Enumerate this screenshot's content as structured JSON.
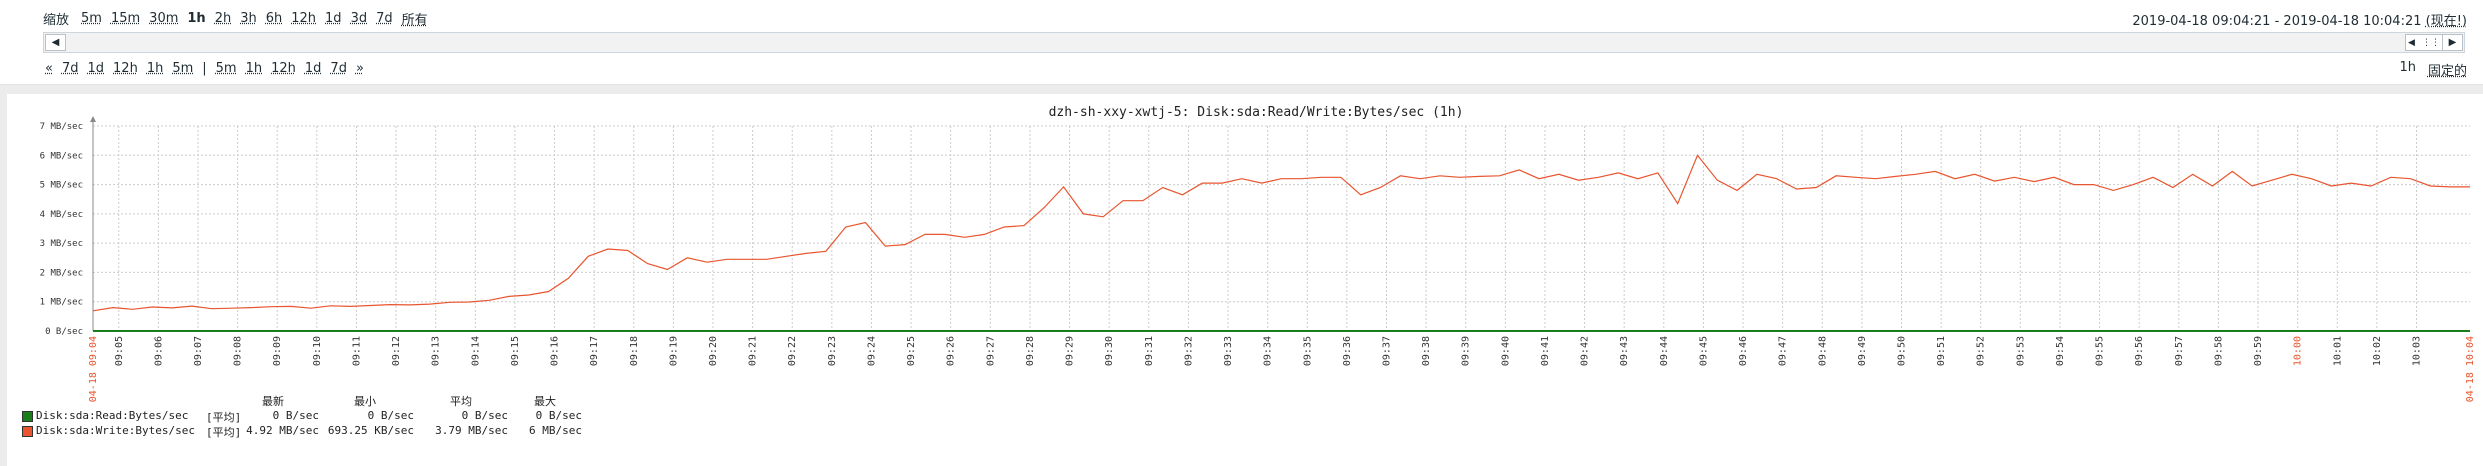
{
  "filter": {
    "zoom_label": "缩放",
    "zoom_options": [
      "5m",
      "15m",
      "30m",
      "1h",
      "2h",
      "3h",
      "6h",
      "12h",
      "1d",
      "3d",
      "7d",
      "所有"
    ],
    "zoom_active": "1h",
    "period_from": "2019-04-18 09:04:21",
    "period_sep": " - ",
    "period_to": "2019-04-18 10:04:21",
    "period_now": "(现在!)",
    "nav_back_arrows": "«",
    "nav_back": [
      "7d",
      "1d",
      "12h",
      "1h",
      "5m"
    ],
    "nav_separator": "|",
    "nav_forward": [
      "5m",
      "1h",
      "12h",
      "1d",
      "7d"
    ],
    "nav_forward_arrows": "»",
    "fixed_size": "1h",
    "fixed_label": "固定的",
    "scroll_left_icon": "◀",
    "scroll_right_icon": "▶"
  },
  "chart_data": {
    "type": "line",
    "title": "dzh-sh-xxy-xwtj-5: Disk:sda:Read/Write:Bytes/sec (1h)",
    "y_unit": "MB/sec",
    "y_tick_labels": [
      "0 B/sec",
      "1 MB/sec",
      "2 MB/sec",
      "3 MB/sec",
      "4 MB/sec",
      "5 MB/sec",
      "6 MB/sec",
      "7 MB/sec"
    ],
    "ylim": [
      0,
      7
    ],
    "grid": true,
    "x_start_label": "04-18 09:04",
    "x_end_label": "04-18 10:04",
    "x_tick_labels": [
      "09:05",
      "09:06",
      "09:07",
      "09:08",
      "09:09",
      "09:10",
      "09:11",
      "09:12",
      "09:13",
      "09:14",
      "09:15",
      "09:16",
      "09:17",
      "09:18",
      "09:19",
      "09:20",
      "09:21",
      "09:22",
      "09:23",
      "09:24",
      "09:25",
      "09:26",
      "09:27",
      "09:28",
      "09:29",
      "09:30",
      "09:31",
      "09:32",
      "09:33",
      "09:34",
      "09:35",
      "09:36",
      "09:37",
      "09:38",
      "09:39",
      "09:40",
      "09:41",
      "09:42",
      "09:43",
      "09:44",
      "09:45",
      "09:46",
      "09:47",
      "09:48",
      "09:49",
      "09:50",
      "09:51",
      "09:52",
      "09:53",
      "09:54",
      "09:55",
      "09:56",
      "09:57",
      "09:58",
      "09:59",
      "10:00",
      "10:01",
      "10:02",
      "10:03"
    ],
    "highlight_tick": "10:00",
    "series": [
      {
        "name": "Disk:sda:Read:Bytes/sec",
        "color": "#1a7f1a",
        "values": [
          0,
          0,
          0,
          0,
          0,
          0,
          0,
          0,
          0,
          0,
          0,
          0,
          0,
          0,
          0,
          0,
          0,
          0,
          0,
          0,
          0,
          0,
          0,
          0,
          0,
          0,
          0,
          0,
          0,
          0,
          0,
          0,
          0,
          0,
          0,
          0,
          0,
          0,
          0,
          0,
          0,
          0,
          0,
          0,
          0,
          0,
          0,
          0,
          0,
          0,
          0,
          0,
          0,
          0,
          0,
          0,
          0,
          0,
          0,
          0,
          0,
          0,
          0,
          0,
          0,
          0,
          0,
          0,
          0,
          0,
          0,
          0,
          0,
          0,
          0,
          0,
          0,
          0,
          0,
          0,
          0,
          0,
          0,
          0,
          0,
          0,
          0,
          0,
          0,
          0,
          0,
          0,
          0,
          0,
          0,
          0,
          0,
          0,
          0,
          0,
          0,
          0,
          0,
          0,
          0,
          0,
          0,
          0,
          0,
          0,
          0,
          0,
          0,
          0,
          0,
          0,
          0,
          0,
          0,
          0,
          0
        ]
      },
      {
        "name": "Disk:sda:Write:Bytes/sec",
        "color": "#e8552f",
        "values": [
          0.69,
          0.8,
          0.74,
          0.82,
          0.79,
          0.85,
          0.76,
          0.78,
          0.8,
          0.83,
          0.84,
          0.78,
          0.86,
          0.84,
          0.87,
          0.9,
          0.89,
          0.92,
          0.98,
          0.99,
          1.05,
          1.18,
          1.23,
          1.35,
          1.8,
          2.55,
          2.8,
          2.75,
          2.3,
          2.1,
          2.5,
          2.35,
          2.45,
          2.45,
          2.45,
          2.55,
          2.65,
          2.72,
          3.55,
          3.7,
          2.9,
          2.95,
          3.3,
          3.3,
          3.2,
          3.3,
          3.55,
          3.6,
          4.2,
          4.92,
          4.0,
          3.9,
          4.45,
          4.45,
          4.9,
          4.65,
          5.05,
          5.05,
          5.2,
          5.05,
          5.2,
          5.2,
          5.25,
          5.25,
          4.65,
          4.9,
          5.3,
          5.2,
          5.3,
          5.25,
          5.28,
          5.3,
          5.5,
          5.2,
          5.35,
          5.15,
          5.25,
          5.4,
          5.2,
          5.4,
          4.35,
          6.0,
          5.15,
          4.8,
          5.35,
          5.2,
          4.85,
          4.9,
          5.3,
          5.25,
          5.2,
          5.28,
          5.35,
          5.45,
          5.2,
          5.35,
          5.12,
          5.25,
          5.1,
          5.25,
          5.0,
          5.0,
          4.8,
          5.0,
          5.25,
          4.9,
          5.35,
          4.95,
          5.45,
          4.95,
          5.15,
          5.35,
          5.2,
          4.95,
          5.05,
          4.95,
          5.25,
          5.2,
          4.95,
          4.92,
          4.92
        ]
      }
    ]
  },
  "legend": {
    "headers": [
      "最新",
      "最小",
      "平均",
      "最大"
    ],
    "rows": [
      {
        "color": "#1a7f1a",
        "name": "Disk:sda:Read:Bytes/sec",
        "func": "[平均]",
        "last": "0 B/sec",
        "min": "0 B/sec",
        "avg": "0 B/sec",
        "max": "0 B/sec"
      },
      {
        "color": "#e8552f",
        "name": "Disk:sda:Write:Bytes/sec",
        "func": "[平均]",
        "last": "4.92 MB/sec",
        "min": "693.25 KB/sec",
        "avg": "3.79 MB/sec",
        "max": "6 MB/sec"
      }
    ]
  }
}
